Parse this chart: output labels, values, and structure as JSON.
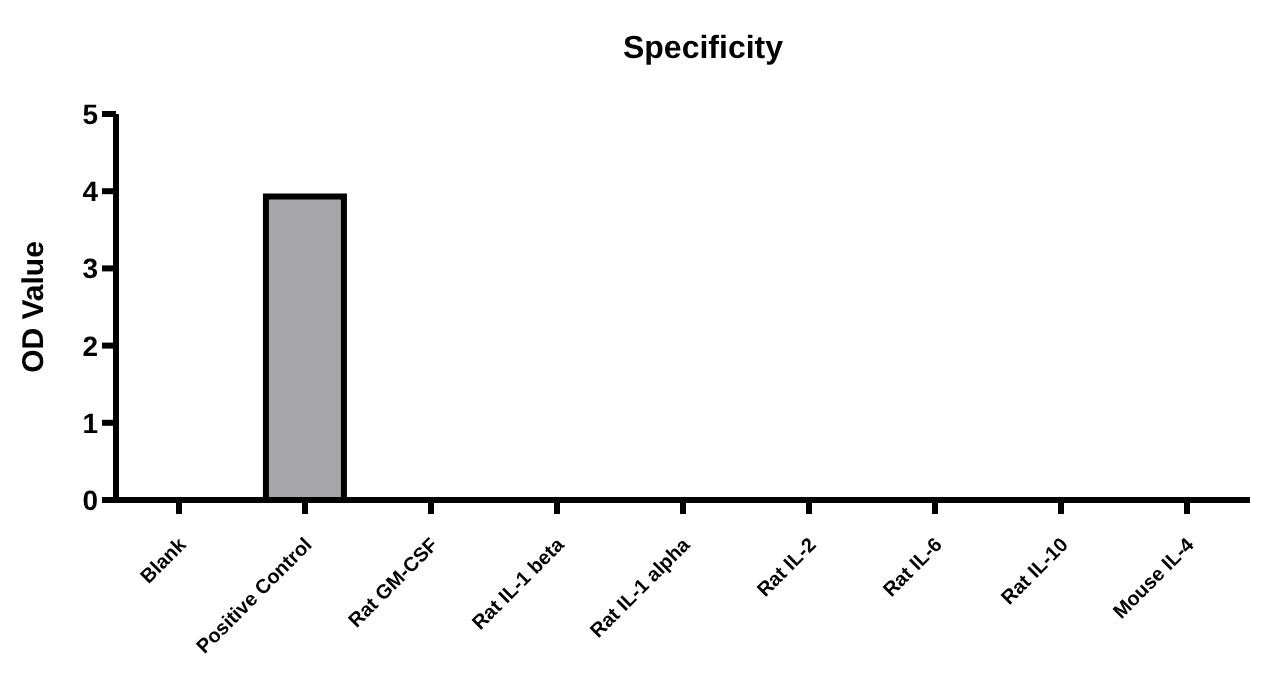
{
  "chart_data": {
    "type": "bar",
    "title": "Specificity",
    "ylabel": "OD Value",
    "categories": [
      "Blank",
      "Positive Control",
      "Rat GM-CSF",
      "Rat IL-1 beta",
      "Rat IL-1 alpha",
      "Rat IL-2",
      "Rat IL-6",
      "Rat IL-10",
      "Mouse IL-4"
    ],
    "values": [
      0,
      3.93,
      0,
      0,
      0,
      0,
      0,
      0,
      0
    ],
    "color": "#a6a6a8",
    "ylim": [
      0,
      5
    ],
    "yticks": [
      0,
      1,
      2,
      3,
      4,
      5
    ],
    "grid": false
  }
}
